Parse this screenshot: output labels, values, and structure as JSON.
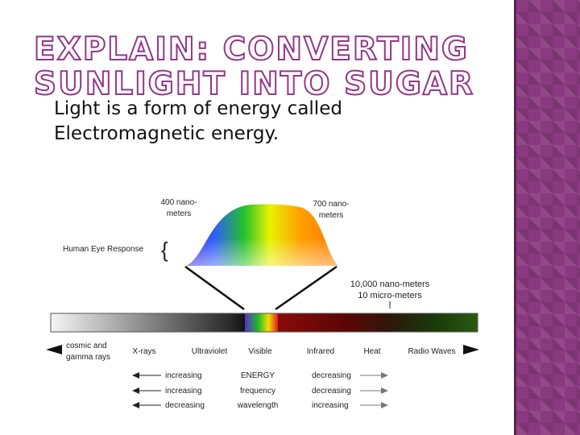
{
  "slide": {
    "title": "Explain: Converting Sunlight into Sugar",
    "body": "Light is a form of energy called Electromagnetic energy."
  },
  "diagram": {
    "label_400": [
      "400 nano-",
      "meters"
    ],
    "label_700": [
      "700 nano-",
      "meters"
    ],
    "eye_response": "Human Eye Response",
    "label_10000": [
      "10,000 nano-meters",
      "10 micro-meters"
    ],
    "bands": [
      "cosmic and",
      "gamma rays",
      "X-rays",
      "Ultraviolet",
      "Visible",
      "Infrared",
      "Heat",
      "Radio Waves"
    ],
    "table": {
      "left": [
        "increasing",
        "increasing",
        "decreasing"
      ],
      "middle": [
        "ENERGY",
        "frequency",
        "wavelength"
      ],
      "right": [
        "decreasing",
        "decreasing",
        "increasing"
      ]
    }
  },
  "colors": {
    "accent": "#93368a",
    "sidebar": "#8a3a80"
  }
}
